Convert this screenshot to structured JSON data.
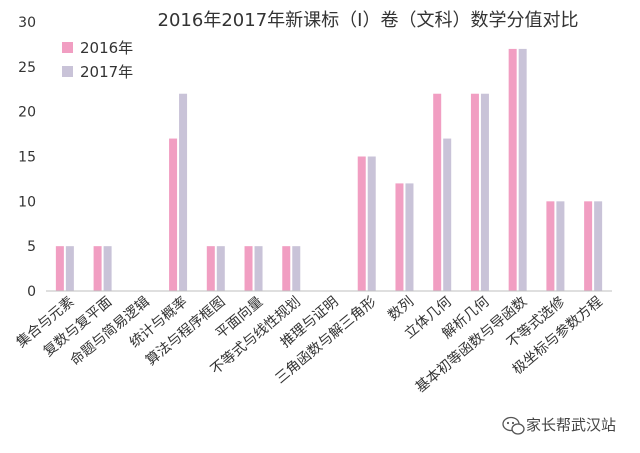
{
  "chart_data": {
    "type": "bar",
    "title": "2016年2017年新课标（Ⅰ）卷（文科）数学分值对比",
    "xlabel": "",
    "ylabel": "",
    "ylim": [
      0,
      30
    ],
    "yticks": [
      0,
      5,
      10,
      15,
      20,
      25,
      30
    ],
    "grid": false,
    "legend_position": "top-left",
    "categories": [
      "集合与元素",
      "复数与复平面",
      "命题与简易逻辑",
      "统计与概率",
      "算法与程序框图",
      "平面向量",
      "不等式与线性规划",
      "推理与证明",
      "三角函数与解三角形",
      "数列",
      "立体几何",
      "解析几何",
      "基本初等函数与导函数",
      "不等式选修",
      "极坐标与参数方程"
    ],
    "series": [
      {
        "name": "2016年",
        "color": "#f19ec2",
        "values": [
          5,
          5,
          0,
          17,
          5,
          5,
          5,
          0,
          15,
          12,
          22,
          22,
          27,
          10,
          10
        ]
      },
      {
        "name": "2017年",
        "color": "#c9c3d8",
        "values": [
          5,
          5,
          0,
          22,
          5,
          5,
          5,
          0,
          15,
          12,
          17,
          22,
          27,
          10,
          10
        ]
      }
    ]
  },
  "watermark": {
    "icon": "wechat-icon",
    "text": "家长帮武汉站"
  }
}
